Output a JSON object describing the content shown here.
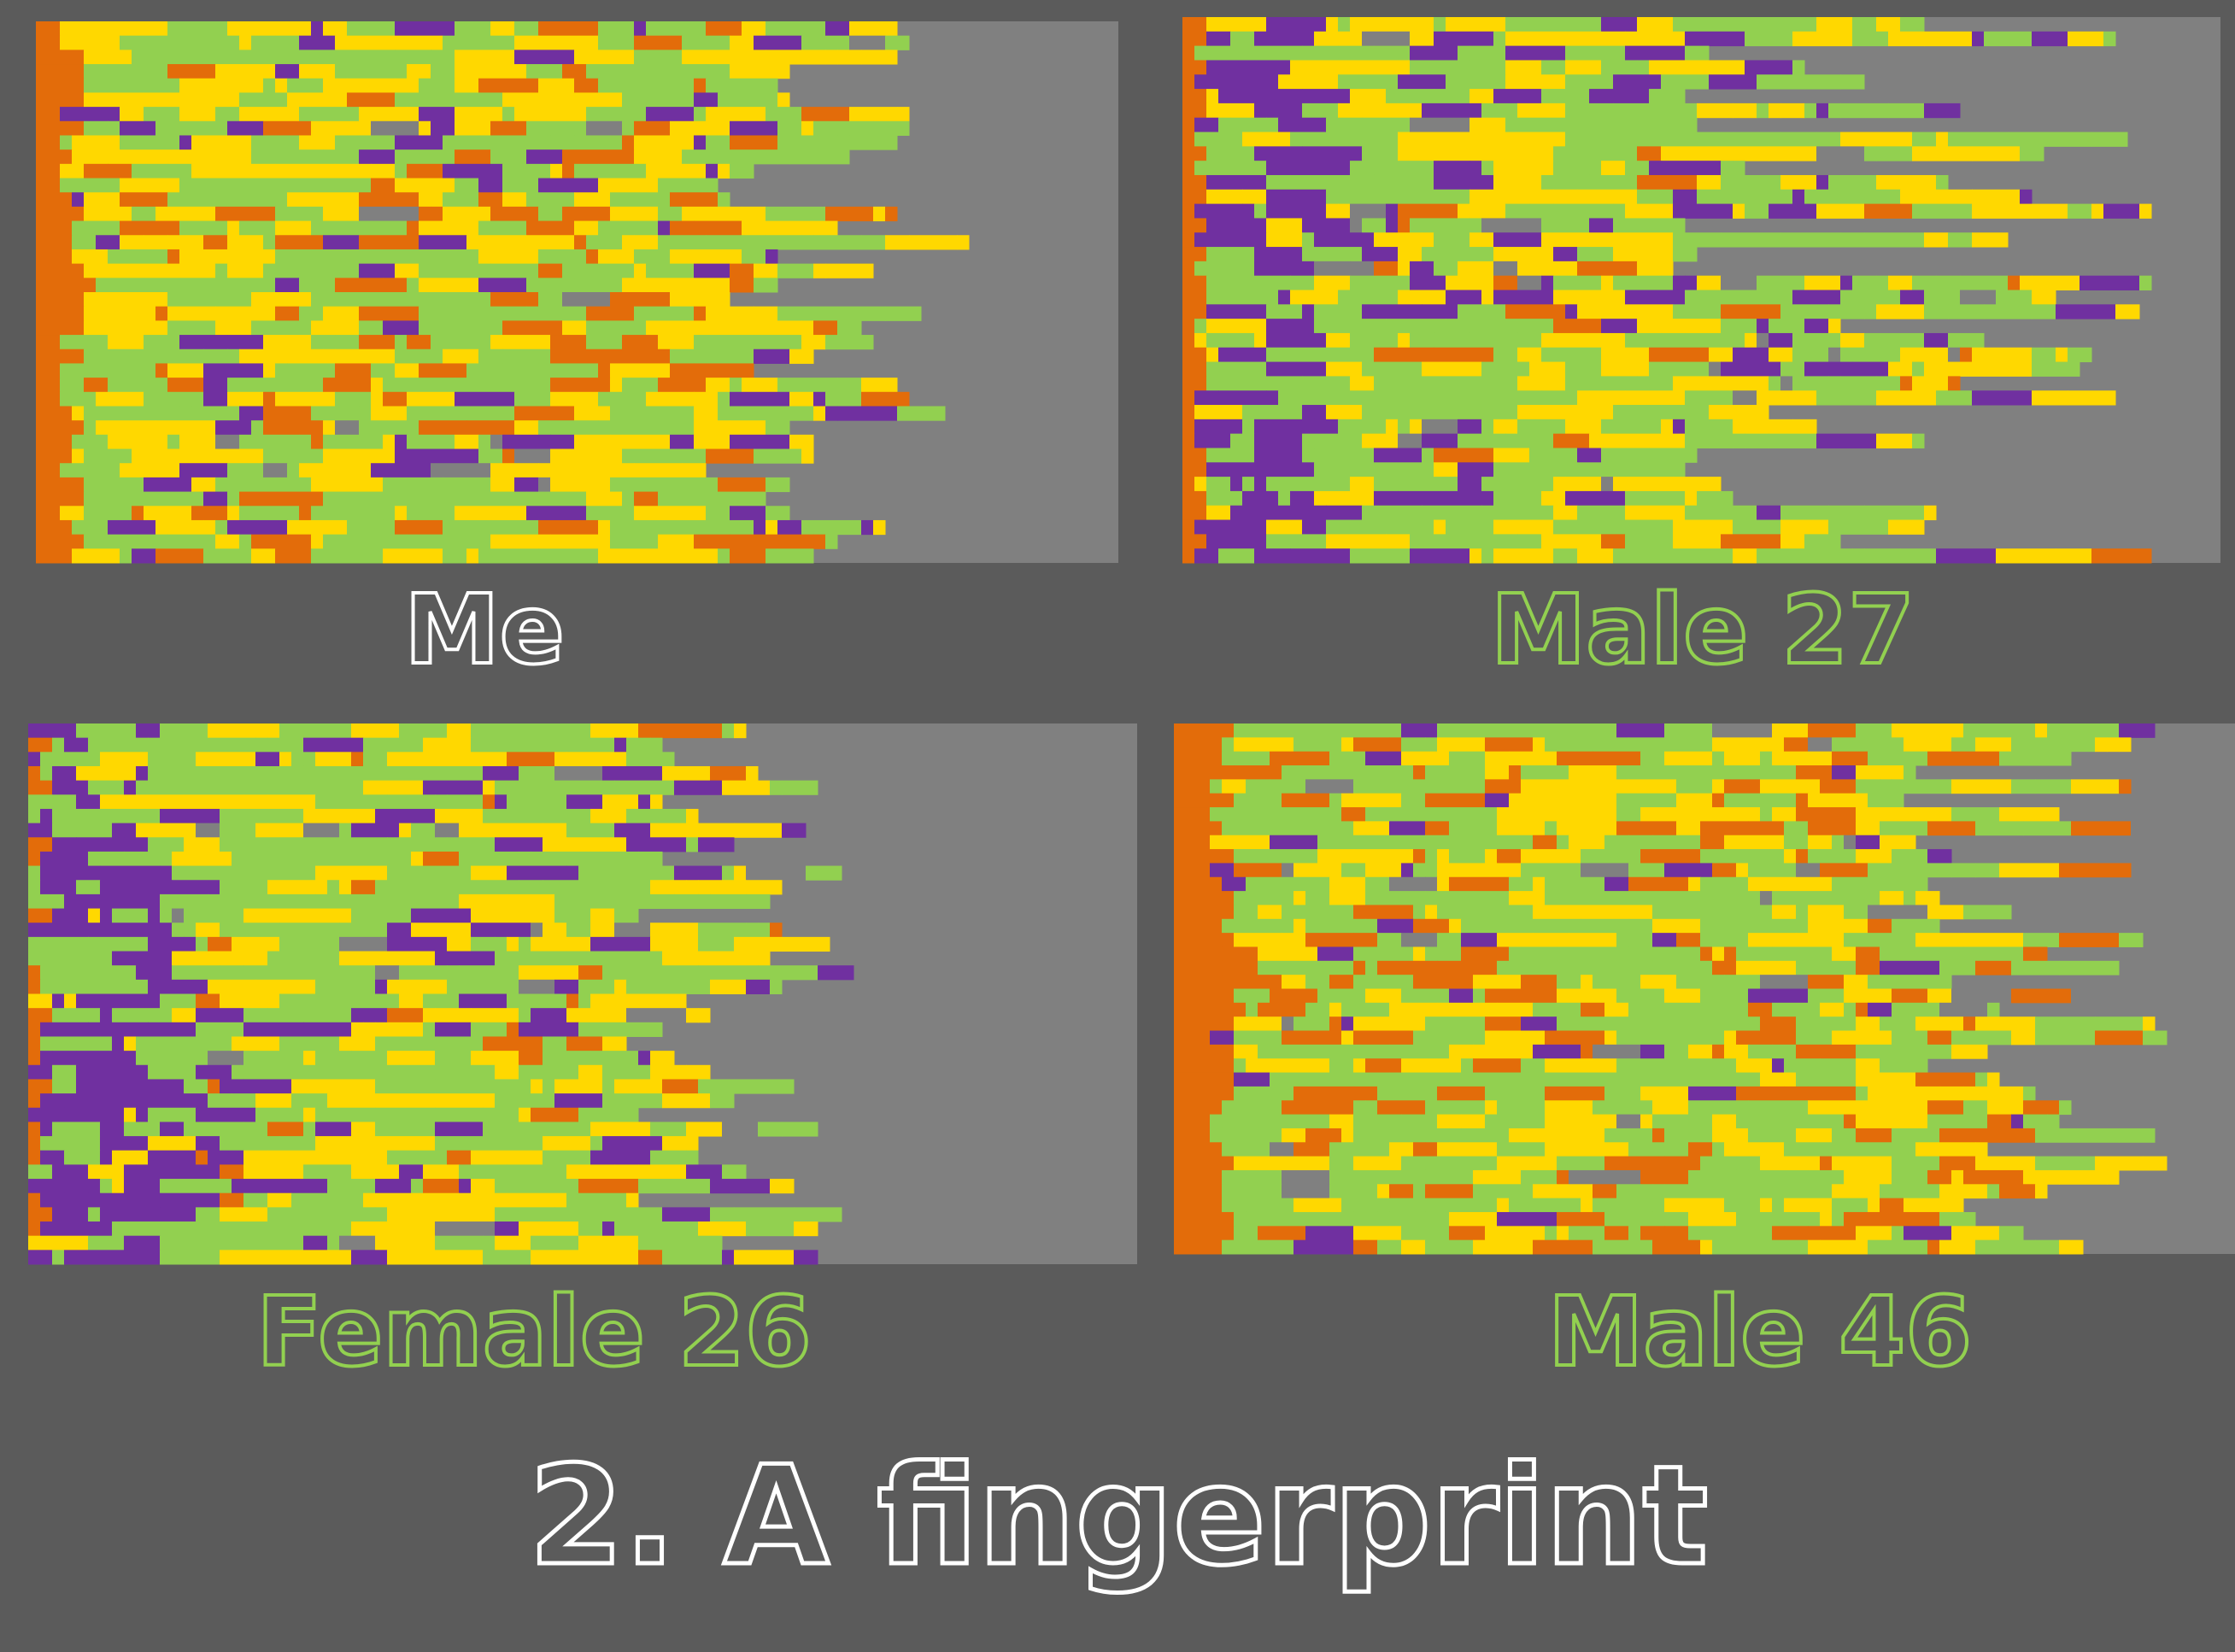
{
  "panels": [
    {
      "label": "Me"
    },
    {
      "label": "Male 27"
    },
    {
      "label": "Female 26"
    },
    {
      "label": "Male 46"
    }
  ],
  "title": "2. A fingerprint"
}
